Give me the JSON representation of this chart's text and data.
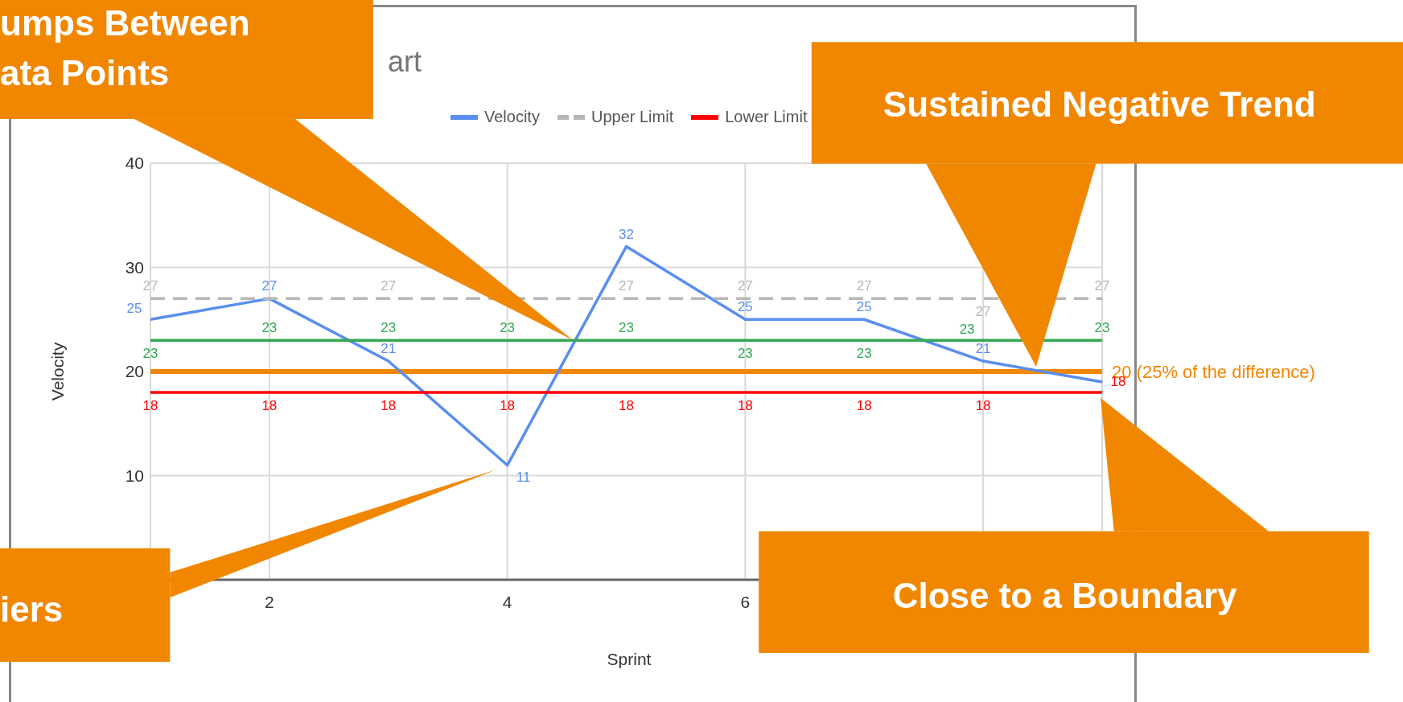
{
  "chart_data": {
    "type": "line",
    "title": "art",
    "xlabel": "Sprint",
    "ylabel": "Velocity",
    "x": [
      1,
      2,
      3,
      4,
      5,
      6,
      7,
      8,
      9
    ],
    "xlim": [
      1,
      9
    ],
    "xticks": [
      2,
      4,
      6,
      {
        "value": 8,
        "label": null
      }
    ],
    "ylim": [
      0,
      40
    ],
    "yticks": [
      10,
      20,
      30,
      40
    ],
    "series": [
      {
        "name": "Velocity",
        "color": "#5a8ef0",
        "values": [
          25,
          27,
          21,
          11,
          32,
          25,
          25,
          21,
          19
        ],
        "value_labels": [
          "25",
          "27",
          "21",
          "11",
          "32",
          "25",
          "25",
          "21",
          null
        ]
      },
      {
        "name": "Upper Limit",
        "color": "#b7b7b7",
        "line_style": "dashed",
        "values": [
          27,
          27,
          27,
          null,
          27,
          27,
          27,
          27,
          27
        ],
        "value_labels": [
          "27",
          null,
          "27",
          null,
          "27",
          "27",
          "27",
          "27",
          "27"
        ]
      },
      {
        "name": "Lower Limit",
        "color": "#ff0000",
        "values": [
          18,
          18,
          18,
          18,
          18,
          18,
          18,
          18,
          18
        ],
        "value_labels": [
          "18",
          "18",
          "18",
          "18",
          "18",
          "18",
          "18",
          "18",
          "18"
        ]
      },
      {
        "color": "#34a853",
        "values": [
          23,
          23,
          23,
          23,
          23,
          23,
          23,
          23,
          23
        ],
        "value_labels": [
          "23",
          "23",
          "23",
          "23",
          "23",
          "23",
          "23",
          "23",
          "23"
        ]
      }
    ],
    "ref_lines": [
      {
        "axis": "y",
        "value": 20,
        "label": "20 (25% of the difference)",
        "color": "#f28705"
      }
    ],
    "annotations": [
      "umps Between\nata Points",
      "iers",
      "Sustained Negative Trend",
      "Close to a Boundary"
    ],
    "grid": true,
    "legend": "top",
    "marker": "none"
  }
}
